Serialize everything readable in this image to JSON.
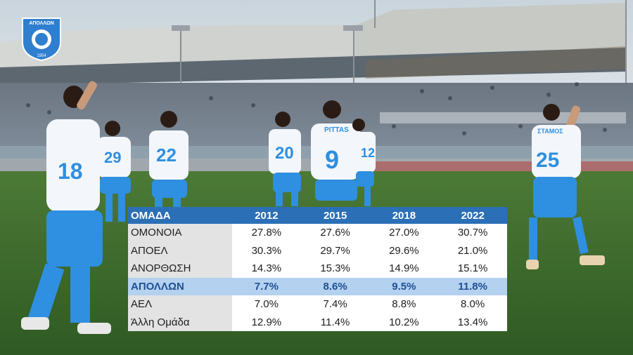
{
  "table": {
    "headers": [
      "ΟΜΑΔΑ",
      "2012",
      "2015",
      "2018",
      "2022"
    ],
    "rows": [
      {
        "team": "ΟΜΟΝΟΙΑ",
        "values": [
          "27.8%",
          "27.6%",
          "27.0%",
          "30.7%"
        ],
        "highlight": false
      },
      {
        "team": "ΑΠΟΕΛ",
        "values": [
          "30.3%",
          "29.7%",
          "29.6%",
          "21.0%"
        ],
        "highlight": false
      },
      {
        "team": "ΑΝΟΡΘΩΣΗ",
        "values": [
          "14.3%",
          "15.3%",
          "14.9%",
          "15.1%"
        ],
        "highlight": false
      },
      {
        "team": "ΑΠΟΛΛΩΝ",
        "values": [
          "7.7%",
          "8.6%",
          "9.5%",
          "11.8%"
        ],
        "highlight": true
      },
      {
        "team": "ΑΕΛ",
        "values": [
          "7.0%",
          "7.4%",
          "8.8%",
          "8.0%"
        ],
        "highlight": false
      },
      {
        "team": "Άλλη Ομάδα",
        "values": [
          "12.9%",
          "11.4%",
          "10.2%",
          "13.4%"
        ],
        "highlight": false
      }
    ]
  },
  "photo": {
    "logo_text": "ΑΠΟΛΛΩΝ",
    "logo_year": "1954",
    "jersey_numbers": [
      "18",
      "29",
      "22",
      "20",
      "9",
      "12",
      "25"
    ],
    "jersey_names": [
      "PITTAS",
      "ΣΤΑΜΟΣ"
    ],
    "colors": {
      "sky": "#c9d4dc",
      "pitch": "#3c6a2c",
      "kit_white": "#f3f6fa",
      "kit_blue": "#2f8fe0",
      "header_blue": "#2b6fb7",
      "highlight_blue": "#b4d1ef"
    }
  }
}
